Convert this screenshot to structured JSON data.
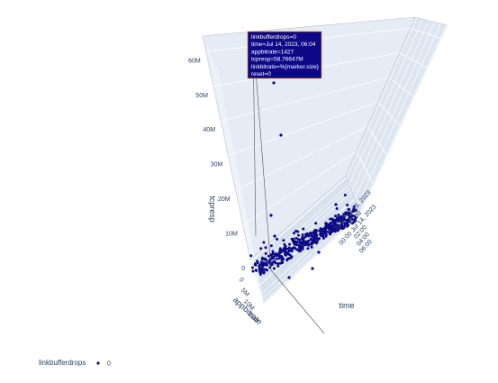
{
  "chart_data": {
    "type": "scatter3d",
    "axes": {
      "x": {
        "title": "appbitrate",
        "ticks": [
          "0",
          "5M",
          "10M",
          "15M"
        ]
      },
      "y": {
        "title": "time",
        "ticks": [
          "20:00 Jul 13, 2023",
          "22:00",
          "00:00 Jul 14, 2023",
          "02:00",
          "04:00",
          "06:00"
        ]
      },
      "z": {
        "title": "tcpresp",
        "ticks": [
          "0",
          "10M",
          "20M",
          "30M",
          "40M",
          "50M",
          "60M"
        ],
        "range": [
          0,
          62000000
        ]
      }
    },
    "hover": {
      "lines": [
        "linkbufferdrops=0",
        "time=Jul 14, 2023, 06:04",
        "appbitrate=1427",
        "tcpresp=58.76647M",
        "linkbitrate=%{marker.size}",
        "reset=0"
      ]
    },
    "legend": {
      "title": "linkbufferdrops",
      "entries": [
        "0"
      ]
    },
    "colors": {
      "marker": "#0d0887",
      "scene_bg": "#e5ecf6",
      "grid": "#ffffff",
      "hover_bg": "#0d0887",
      "hover_border": "#fb8e00",
      "text": "#2a3f5f"
    }
  }
}
